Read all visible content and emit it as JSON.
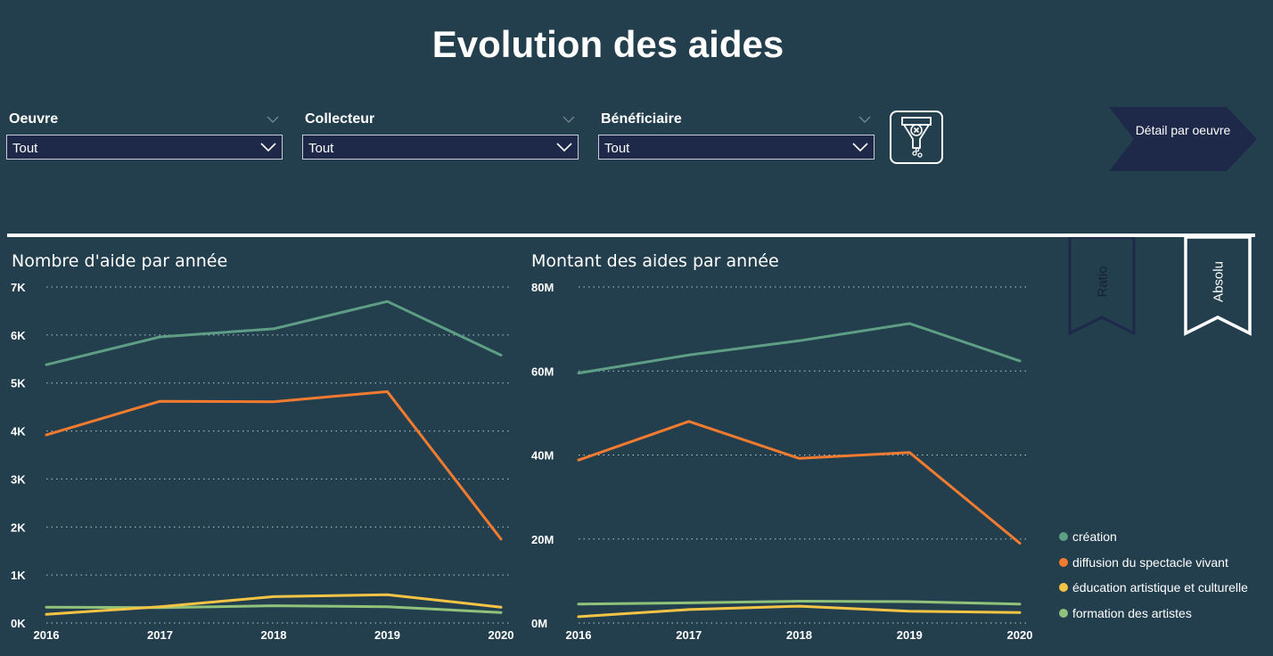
{
  "page": {
    "title": "Evolution des aides"
  },
  "filters": [
    {
      "label": "Oeuvre",
      "value": "Tout"
    },
    {
      "label": "Collecteur",
      "value": "Tout"
    },
    {
      "label": "Bénéficiaire",
      "value": "Tout"
    }
  ],
  "buttons": {
    "clear_filters_icon": "funnel-clear-icon",
    "detail_label": "Détail par oeuvre"
  },
  "bookmarks": {
    "ratio": "Ratio",
    "absolu": "Absolu",
    "active": "Absolu"
  },
  "colors": {
    "background": "#233f4e",
    "creation": "#5d9e84",
    "diffusion": "#f27b30",
    "education": "#f6c445",
    "formation": "#91c27a"
  },
  "chart_data": [
    {
      "type": "line",
      "title": "Nombre d'aide par année",
      "x": [
        "2016",
        "2017",
        "2018",
        "2019",
        "2020"
      ],
      "y_ticks": [
        "0K",
        "1K",
        "2K",
        "3K",
        "4K",
        "5K",
        "6K",
        "7K"
      ],
      "ylim": [
        0,
        7000
      ],
      "grid": true,
      "series": [
        {
          "name": "création",
          "color": "#5d9e84",
          "values": [
            5380,
            5960,
            6130,
            6700,
            5580
          ]
        },
        {
          "name": "diffusion du spectacle vivant",
          "color": "#f27b30",
          "values": [
            3920,
            4620,
            4610,
            4820,
            1750
          ]
        },
        {
          "name": "éducation artistique et culturelle",
          "color": "#f6c445",
          "values": [
            180,
            340,
            550,
            590,
            330
          ]
        },
        {
          "name": "formation des artistes",
          "color": "#91c27a",
          "values": [
            330,
            320,
            360,
            340,
            220
          ]
        }
      ]
    },
    {
      "type": "line",
      "title": "Montant des aides par année",
      "x": [
        "2016",
        "2017",
        "2018",
        "2019",
        "2020"
      ],
      "y_ticks": [
        "0M",
        "20M",
        "40M",
        "60M",
        "80M"
      ],
      "ylim": [
        0,
        80000000
      ],
      "grid": true,
      "series": [
        {
          "name": "création",
          "color": "#5d9e84",
          "values": [
            59500000,
            63800000,
            67200000,
            71300000,
            62400000
          ]
        },
        {
          "name": "diffusion du spectacle vivant",
          "color": "#f27b30",
          "values": [
            38800000,
            48000000,
            39200000,
            40600000,
            19000000
          ]
        },
        {
          "name": "éducation artistique et culturelle",
          "color": "#f6c445",
          "values": [
            1500000,
            3200000,
            4000000,
            2800000,
            2500000
          ]
        },
        {
          "name": "formation des artistes",
          "color": "#91c27a",
          "values": [
            4500000,
            4800000,
            5200000,
            5100000,
            4500000
          ]
        }
      ]
    }
  ],
  "legend": {
    "items": [
      {
        "label": "création",
        "color": "#5d9e84"
      },
      {
        "label": "diffusion du spectacle vivant",
        "color": "#f27b30"
      },
      {
        "label": "éducation artistique et culturelle",
        "color": "#f6c445"
      },
      {
        "label": "formation des artistes",
        "color": "#91c27a"
      }
    ]
  }
}
